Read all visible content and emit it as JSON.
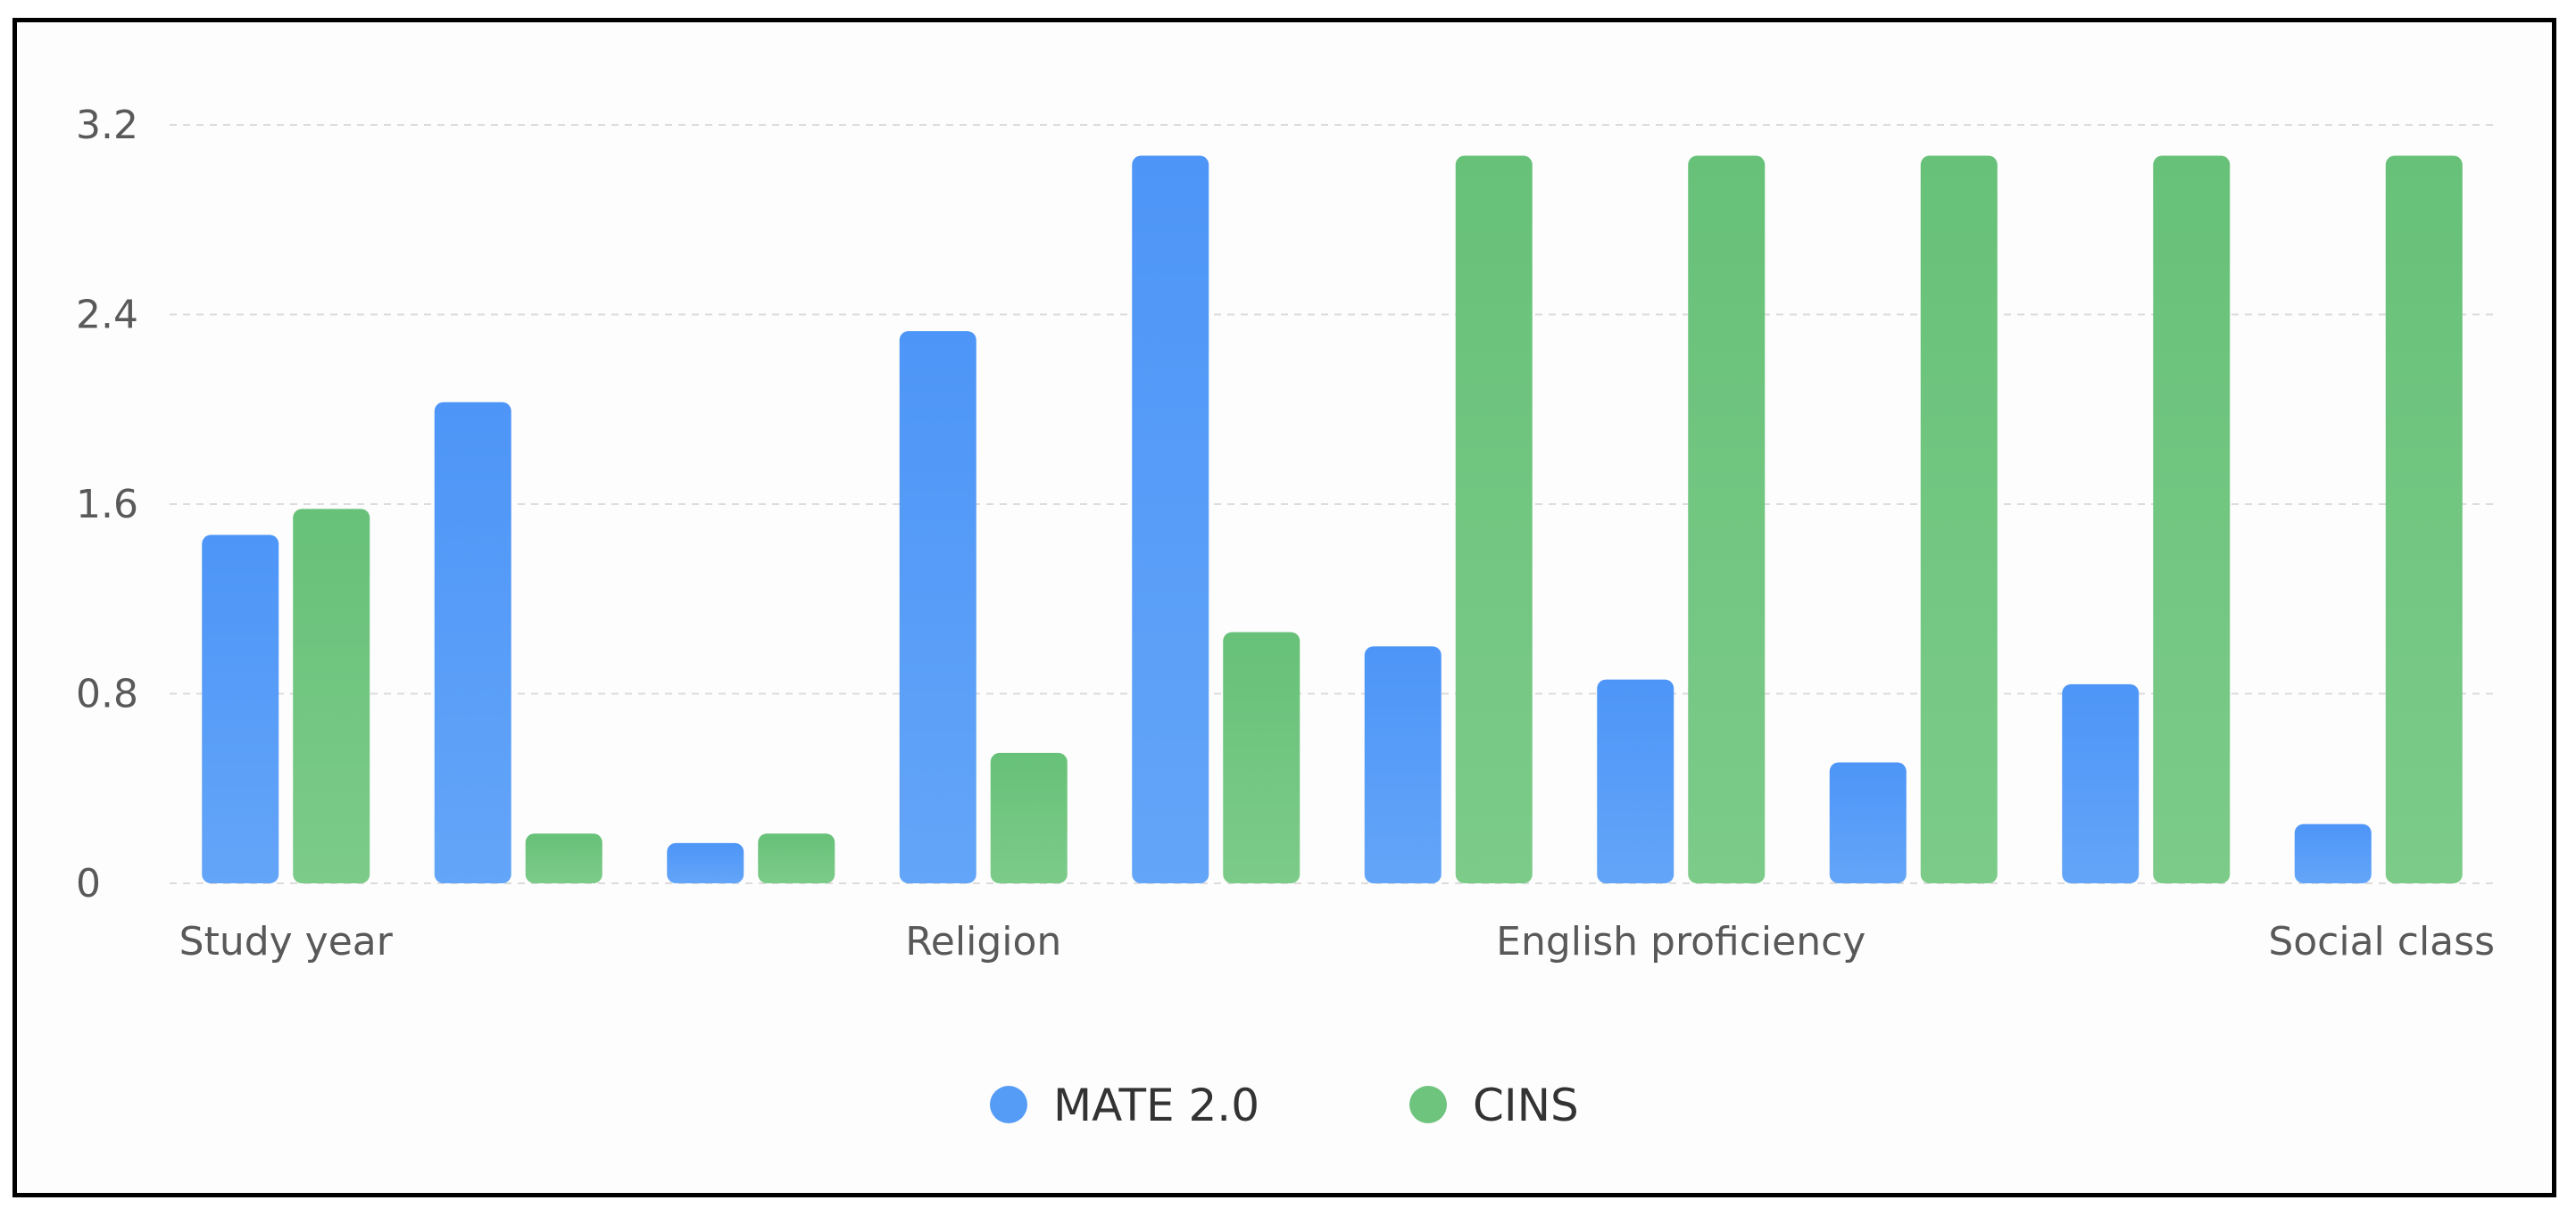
{
  "chart_data": {
    "type": "bar",
    "categories": [
      "Study year",
      "",
      "",
      "Religion",
      "",
      "",
      "English proficiency",
      "",
      "",
      "Social class"
    ],
    "series": [
      {
        "name": "MATE 2.0",
        "color": "#559cf7",
        "values": [
          1.47,
          2.03,
          0.17,
          2.33,
          3.07,
          1.0,
          0.86,
          0.51,
          0.84,
          0.25
        ]
      },
      {
        "name": "CINS",
        "color": "#6ec47d",
        "values": [
          1.58,
          0.21,
          0.21,
          0.55,
          1.06,
          3.07,
          3.07,
          3.07,
          3.07,
          3.07
        ]
      }
    ],
    "yticks": [
      "0",
      "0.8",
      "1.6",
      "2.4",
      "3.2"
    ],
    "ylim": [
      0,
      3.2
    ],
    "grid": true,
    "legend_position": "bottom",
    "title": "",
    "xlabel": "",
    "ylabel": ""
  }
}
